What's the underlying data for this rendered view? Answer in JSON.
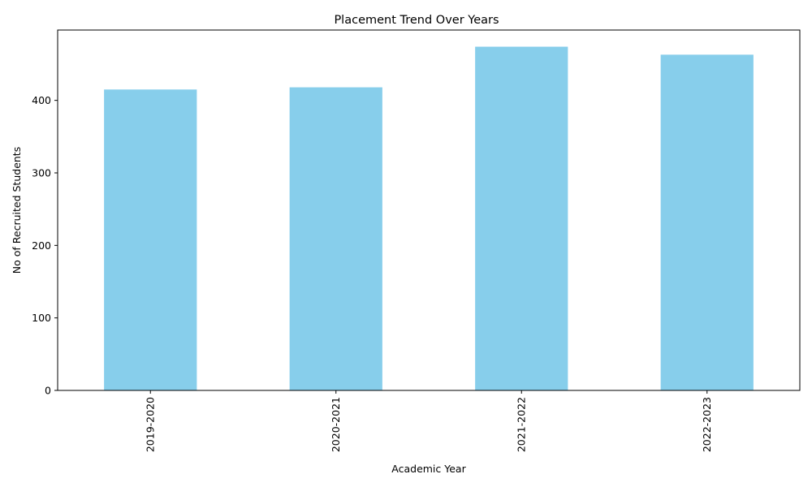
{
  "chart_data": {
    "type": "bar",
    "title": "Placement Trend Over Years",
    "xlabel": "Academic Year",
    "ylabel": "No of Recruited Students",
    "categories": [
      "2019-2020",
      "2020-2021",
      "2021-2022",
      "2022-2023"
    ],
    "values": [
      415,
      418,
      474,
      463
    ],
    "ylim": [
      0,
      497
    ],
    "yticks": [
      0,
      100,
      200,
      300,
      400
    ],
    "bar_color": "#87CEEB",
    "grid": false,
    "legend": "none"
  }
}
